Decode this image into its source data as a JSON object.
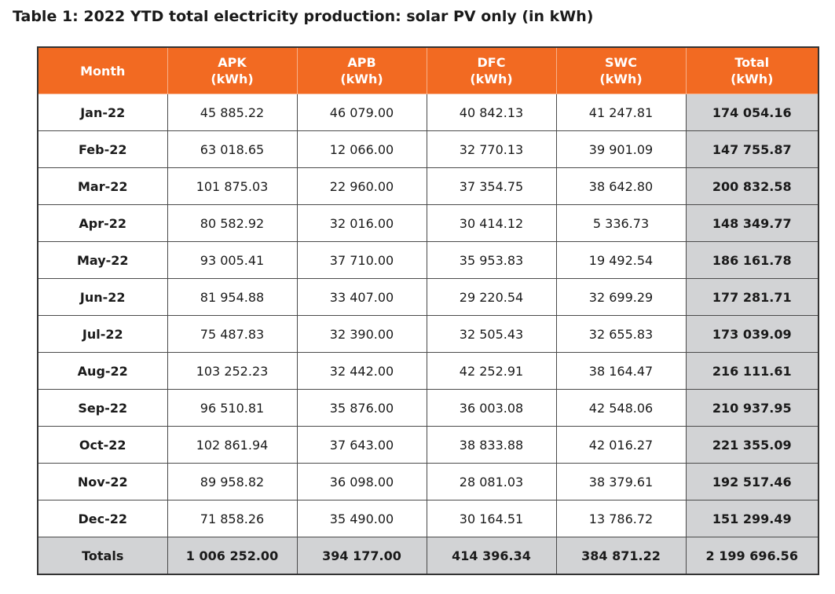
{
  "title": "Table 1: 2022 YTD total electricity production: solar PV only (in kWh)",
  "columns": [
    {
      "name": "Month",
      "unit": ""
    },
    {
      "name": "APK",
      "unit": "(kWh)"
    },
    {
      "name": "APB",
      "unit": "(kWh)"
    },
    {
      "name": "DFC",
      "unit": "(kWh)"
    },
    {
      "name": "SWC",
      "unit": "(kWh)"
    },
    {
      "name": "Total",
      "unit": "(kWh)"
    }
  ],
  "rows": [
    [
      "Jan-22",
      "45 885.22",
      "46 079.00",
      "40 842.13",
      "41 247.81",
      "174 054.16"
    ],
    [
      "Feb-22",
      "63 018.65",
      "12 066.00",
      "32 770.13",
      "39 901.09",
      "147 755.87"
    ],
    [
      "Mar-22",
      "101 875.03",
      "22 960.00",
      "37 354.75",
      "38 642.80",
      "200 832.58"
    ],
    [
      "Apr-22",
      "80 582.92",
      "32 016.00",
      "30 414.12",
      "5 336.73",
      "148 349.77"
    ],
    [
      "May-22",
      "93 005.41",
      "37 710.00",
      "35 953.83",
      "19 492.54",
      "186 161.78"
    ],
    [
      "Jun-22",
      "81 954.88",
      "33 407.00",
      "29 220.54",
      "32 699.29",
      "177 281.71"
    ],
    [
      "Jul-22",
      "75 487.83",
      "32 390.00",
      "32 505.43",
      "32 655.83",
      "173 039.09"
    ],
    [
      "Aug-22",
      "103 252.23",
      "32 442.00",
      "42 252.91",
      "38 164.47",
      "216 111.61"
    ],
    [
      "Sep-22",
      "96 510.81",
      "35 876.00",
      "36 003.08",
      "42 548.06",
      "210 937.95"
    ],
    [
      "Oct-22",
      "102 861.94",
      "37 643.00",
      "38 833.88",
      "42 016.27",
      "221 355.09"
    ],
    [
      "Nov-22",
      "89 958.82",
      "36 098.00",
      "28 081.03",
      "38 379.61",
      "192 517.46"
    ],
    [
      "Dec-22",
      "71 858.26",
      "35 490.00",
      "30 164.51",
      "13 786.72",
      "151 299.49"
    ]
  ],
  "totals": [
    "Totals",
    "1 006 252.00",
    "394 177.00",
    "414 396.34",
    "384 871.22",
    "2 199 696.56"
  ],
  "colors": {
    "header_bg": "#f26a22",
    "header_text": "#ffffff",
    "total_bg": "#d2d3d5",
    "grid": "#4a4a4a"
  }
}
